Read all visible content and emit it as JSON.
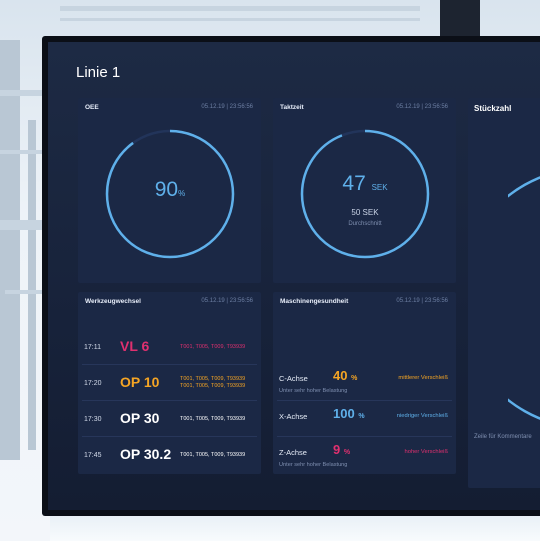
{
  "page": {
    "title": "Linie 1"
  },
  "oee": {
    "title": "OEE",
    "timestamp": "05.12.19 | 23:56:56",
    "value": "90",
    "unit": "%",
    "fill": 0.9
  },
  "taktzeit": {
    "title": "Taktzeit",
    "timestamp": "05.12.19 | 23:56:56",
    "value": "47",
    "unit": "SEK",
    "target": "50 SEK",
    "target_label": "Durchschnitt",
    "fill": 0.94
  },
  "stueckzahl": {
    "title": "Stückzahl",
    "comment": "Zeile für Kommentare"
  },
  "werkzeugwechsel": {
    "title": "Werkzeugwechsel",
    "timestamp": "05.12.19 | 23:56:56",
    "rows": [
      {
        "time": "17:11",
        "op": "VL 6",
        "color": "#e0306f",
        "tools": [
          "T001, T005, T009, T93939"
        ]
      },
      {
        "time": "17:20",
        "op": "OP 10",
        "color": "#f5a524",
        "tools": [
          "T001, T005, T009, T93939",
          "T001, T005, T009, T93939"
        ]
      },
      {
        "time": "17:30",
        "op": "OP 30",
        "color": "#ffffff",
        "tools": [
          "T001, T005, T009, T93939"
        ]
      },
      {
        "time": "17:45",
        "op": "OP 30.2",
        "color": "#ffffff",
        "tools": [
          "T001, T005, T009, T93939"
        ]
      }
    ]
  },
  "maschinengesundheit": {
    "title": "Maschinengesundheit",
    "timestamp": "05.12.19 | 23:56:56",
    "axes": [
      {
        "name": "C-Achse",
        "value": "40",
        "unit": "%",
        "color": "#f5a524",
        "status": "mittlerer Verschleiß",
        "status_color": "#f5a524",
        "note": "Unter sehr hoher Belastung"
      },
      {
        "name": "X-Achse",
        "value": "100",
        "unit": "%",
        "color": "#5fb0ea",
        "status": "niedriger Verschleiß",
        "status_color": "#5fb0ea",
        "note": ""
      },
      {
        "name": "Z-Achse",
        "value": "9",
        "unit": "%",
        "color": "#e0306f",
        "status": "hoher Verschleiß",
        "status_color": "#e0306f",
        "note": "Unter sehr hoher Belastung"
      }
    ]
  },
  "colors": {
    "accent": "#5fb0ea",
    "warning": "#f5a524",
    "danger": "#e0306f"
  }
}
